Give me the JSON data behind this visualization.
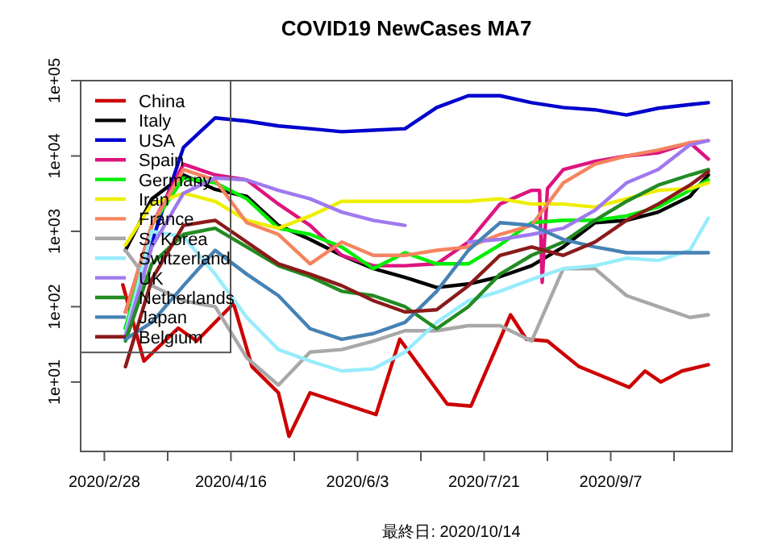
{
  "chart_data": {
    "type": "line",
    "title": "COVID19 NewCases MA7",
    "annotations": [
      "最終日: 2020/10/14"
    ],
    "x": [
      "2020-03-07",
      "2020-03-17",
      "2020-03-29",
      "2020-04-10",
      "2020-04-22",
      "2020-05-04",
      "2020-05-16",
      "2020-05-28",
      "2020-06-09",
      "2020-06-21",
      "2020-07-03",
      "2020-07-15",
      "2020-07-27",
      "2020-08-08",
      "2020-08-20",
      "2020-09-01",
      "2020-09-13",
      "2020-09-25",
      "2020-10-07",
      "2020-10-14"
    ],
    "series": [
      {
        "name": "China",
        "color": "#cd0000",
        "x": [
          "2020-03-06",
          "2020-03-14",
          "2020-03-27",
          "2020-04-03",
          "2020-04-17",
          "2020-04-24",
          "2020-05-04",
          "2020-05-08",
          "2020-05-16",
          "2020-05-29",
          "2020-06-10",
          "2020-06-19",
          "2020-07-07",
          "2020-07-16",
          "2020-07-31",
          "2020-08-06",
          "2020-08-14",
          "2020-08-26",
          "2020-09-14",
          "2020-09-20",
          "2020-09-26",
          "2020-10-04",
          "2020-10-14"
        ],
        "values": [
          195,
          19,
          52,
          35,
          110,
          16,
          7.2,
          1.9,
          7.2,
          5.1,
          3.7,
          37,
          5.1,
          4.8,
          78,
          37,
          35,
          16,
          8.5,
          14,
          10,
          14,
          17
        ]
      },
      {
        "name": "Italy",
        "color": "#000000",
        "values": [
          560,
          2700,
          5600,
          3600,
          2900,
          1200,
          780,
          480,
          320,
          245,
          180,
          200,
          250,
          350,
          620,
          1300,
          1400,
          1800,
          2900,
          5600
        ]
      },
      {
        "name": "USA",
        "color": "#0000cd",
        "values": [
          52,
          720,
          13000,
          32000,
          29000,
          25000,
          23000,
          21000,
          22000,
          23000,
          44000,
          63000,
          63000,
          51000,
          44000,
          41000,
          35000,
          43000,
          48000,
          51000
        ]
      },
      {
        "name": "Spain",
        "color": "#dd1480",
        "x": [
          "2020-03-07",
          "2020-03-17",
          "2020-03-29",
          "2020-04-10",
          "2020-04-22",
          "2020-05-04",
          "2020-05-16",
          "2020-05-28",
          "2020-06-09",
          "2020-06-21",
          "2020-07-03",
          "2020-07-15",
          "2020-07-27",
          "2020-08-08",
          "2020-08-11",
          "2020-08-12",
          "2020-08-14",
          "2020-08-20",
          "2020-09-01",
          "2020-09-13",
          "2020-09-25",
          "2020-10-07",
          "2020-10-14"
        ],
        "values": [
          85,
          1200,
          7800,
          5600,
          4800,
          2300,
          1200,
          480,
          350,
          350,
          370,
          720,
          2300,
          3500,
          3500,
          210,
          3700,
          6600,
          8500,
          10000,
          11000,
          15000,
          9100
        ]
      },
      {
        "name": "Germany",
        "color": "#00ee00",
        "values": [
          51,
          1200,
          5100,
          4400,
          2700,
          1100,
          910,
          620,
          320,
          520,
          370,
          370,
          660,
          1300,
          1400,
          1400,
          1600,
          2100,
          3500,
          4800
        ]
      },
      {
        "name": "Iran",
        "color": "#eeee00",
        "values": [
          660,
          2300,
          3200,
          2500,
          1400,
          1100,
          1600,
          2500,
          2500,
          2500,
          2500,
          2500,
          2700,
          2300,
          2300,
          2100,
          2700,
          3500,
          3700,
          4400
        ]
      },
      {
        "name": "France",
        "color": "#f4845f",
        "values": [
          85,
          1200,
          6600,
          4800,
          1300,
          910,
          370,
          720,
          480,
          480,
          560,
          620,
          910,
          1200,
          4400,
          7800,
          10000,
          12000,
          15000,
          16000
        ]
      },
      {
        "name": "S. Korea",
        "color": "#a8a8a8",
        "values": [
          560,
          190,
          120,
          100,
          21,
          9.1,
          25,
          27,
          35,
          48,
          48,
          56,
          56,
          35,
          320,
          320,
          140,
          100,
          72,
          78
        ]
      },
      {
        "name": "Switzerland",
        "color": "#98ecfc",
        "values": [
          44,
          1000,
          850,
          270,
          72,
          27,
          19,
          14,
          15,
          25,
          62,
          120,
          160,
          230,
          320,
          350,
          440,
          410,
          560,
          1500
        ]
      },
      {
        "name": "UK",
        "color": "#9f79ee",
        "values": [
          40,
          620,
          3200,
          5100,
          4800,
          3500,
          2700,
          1800,
          1400,
          1200,
          null,
          720,
          780,
          910,
          1100,
          1900,
          4400,
          6600,
          14000,
          16000
        ]
      },
      {
        "name": "Netherlands",
        "color": "#228b22",
        "values": [
          35,
          370,
          910,
          1100,
          620,
          350,
          250,
          160,
          140,
          100,
          51,
          100,
          270,
          480,
          720,
          1400,
          2500,
          4100,
          5600,
          6600
        ]
      },
      {
        "name": "Japan",
        "color": "#4682b4",
        "values": [
          37,
          62,
          190,
          560,
          270,
          140,
          51,
          37,
          44,
          62,
          160,
          560,
          1300,
          1200,
          780,
          620,
          520,
          520,
          520,
          520
        ]
      },
      {
        "name": "Belgium",
        "color": "#8b1a1a",
        "values": [
          16,
          230,
          1200,
          1400,
          720,
          370,
          270,
          190,
          120,
          85,
          91,
          190,
          480,
          620,
          480,
          720,
          1400,
          2300,
          4100,
          6200
        ]
      }
    ],
    "xlim": [
      "2020-02-19",
      "2020-10-23"
    ],
    "xticks": [
      {
        "value": "2020-02-28",
        "label": "2020/2/28"
      },
      {
        "value": "2020-03-23",
        "label": null
      },
      {
        "value": "2020-04-16",
        "label": "2020/4/16"
      },
      {
        "value": "2020-05-10",
        "label": null
      },
      {
        "value": "2020-06-03",
        "label": "2020/6/3"
      },
      {
        "value": "2020-06-27",
        "label": null
      },
      {
        "value": "2020-07-21",
        "label": "2020/7/21"
      },
      {
        "value": "2020-08-14",
        "label": null
      },
      {
        "value": "2020-09-07",
        "label": "2020/9/7"
      },
      {
        "value": "2020-10-01",
        "label": null
      }
    ],
    "ylim": [
      1.2,
      100000
    ],
    "yticks": [
      {
        "value": 10,
        "label": "1e+01"
      },
      {
        "value": 100,
        "label": "1e+02"
      },
      {
        "value": 1000,
        "label": "1e+03"
      },
      {
        "value": 10000,
        "label": "1e+04"
      },
      {
        "value": 100000,
        "label": "1e+05"
      }
    ],
    "log": "y",
    "grid": false,
    "legend": "top left",
    "marker": "none",
    "line_style": "solid"
  }
}
